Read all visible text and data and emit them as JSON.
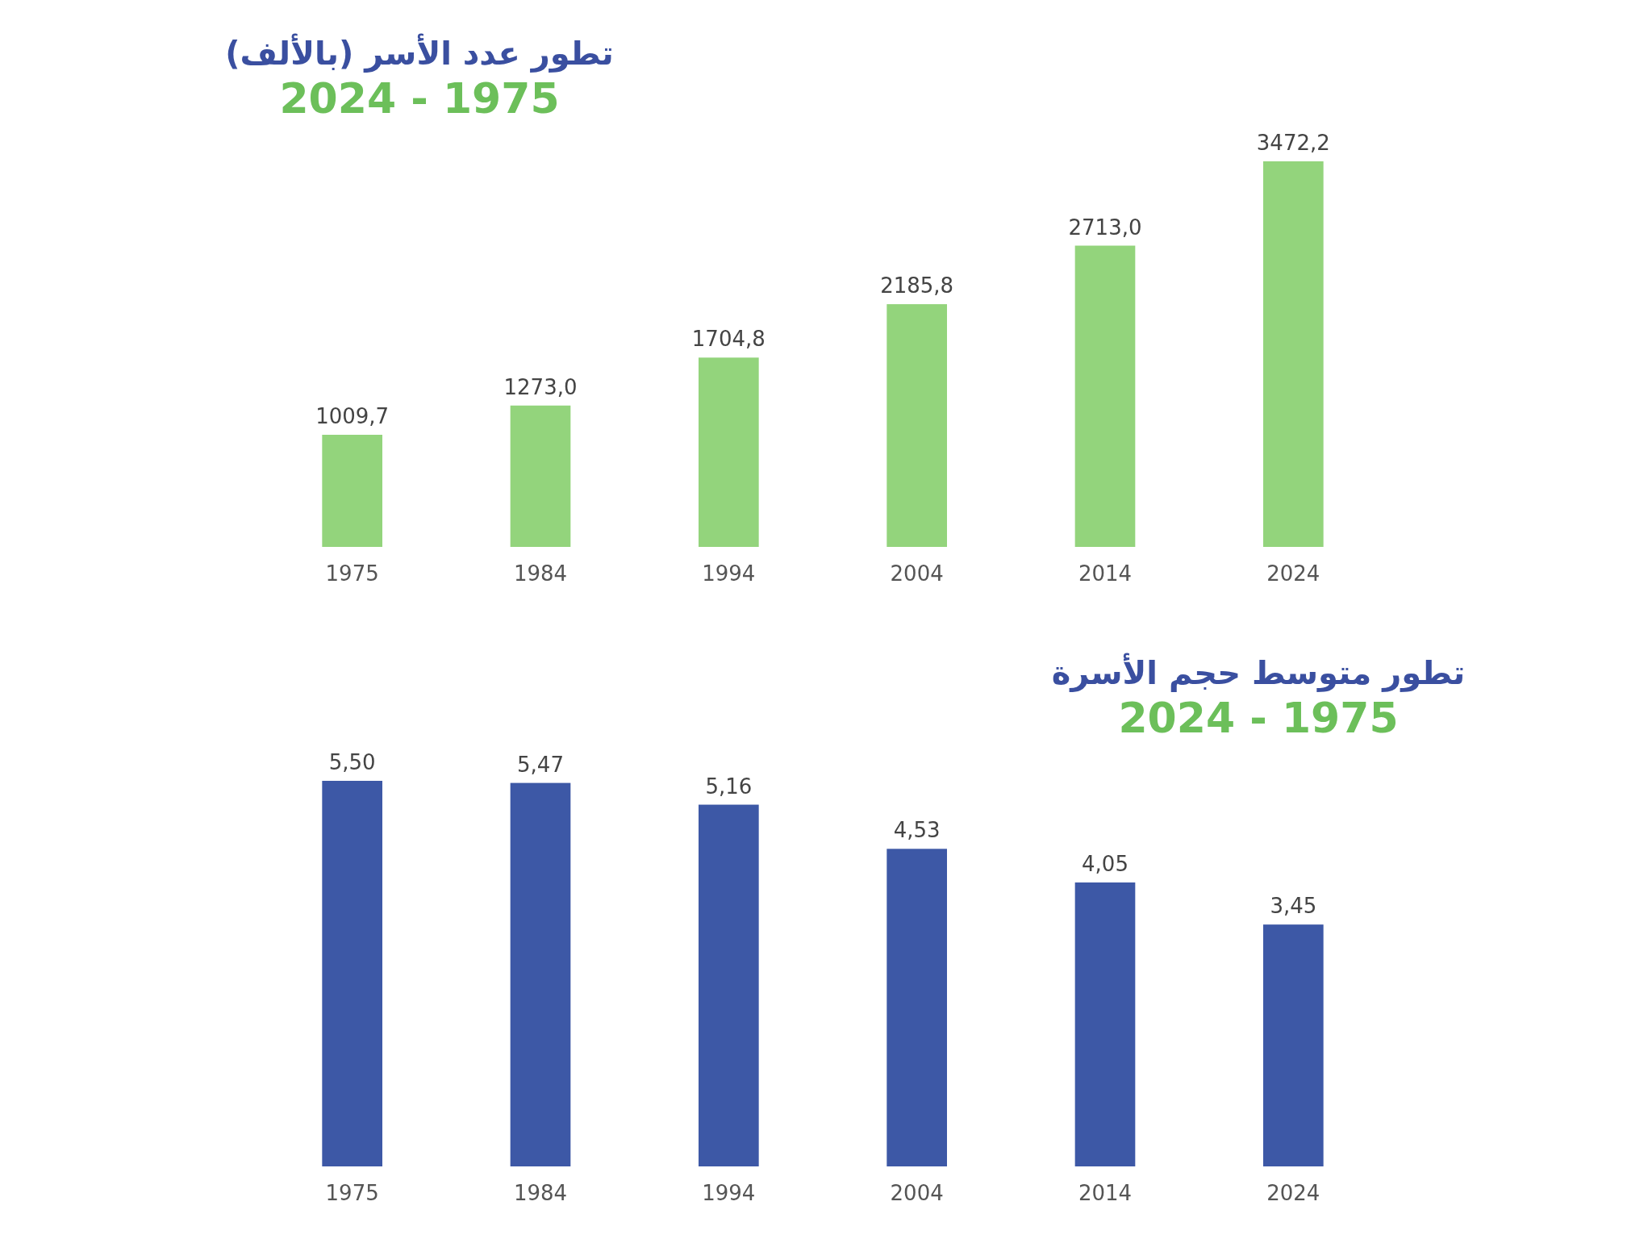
{
  "chart_data": [
    {
      "type": "bar",
      "title": "تطور عدد الأسر (بالألف)",
      "subtitle": "2024 - 1975",
      "categories": [
        "1975",
        "1984",
        "1994",
        "2004",
        "2014",
        "2024"
      ],
      "values": [
        1009.7,
        1273.0,
        1704.8,
        2185.8,
        2713.0,
        3472.2
      ],
      "value_labels": [
        "1009,7",
        "1273,0",
        "1704,8",
        "2185,8",
        "2713,0",
        "3472,2"
      ],
      "color": "#93d47c"
    },
    {
      "type": "bar",
      "title": "تطور متوسط حجم الأسرة",
      "subtitle": "2024 - 1975",
      "categories": [
        "1975",
        "1984",
        "1994",
        "2004",
        "2014",
        "2024"
      ],
      "values": [
        5.5,
        5.47,
        5.16,
        4.53,
        4.05,
        3.45
      ],
      "value_labels": [
        "5,50",
        "5,47",
        "5,16",
        "4,53",
        "4,05",
        "3,45"
      ],
      "color": "#3d58a6"
    }
  ]
}
